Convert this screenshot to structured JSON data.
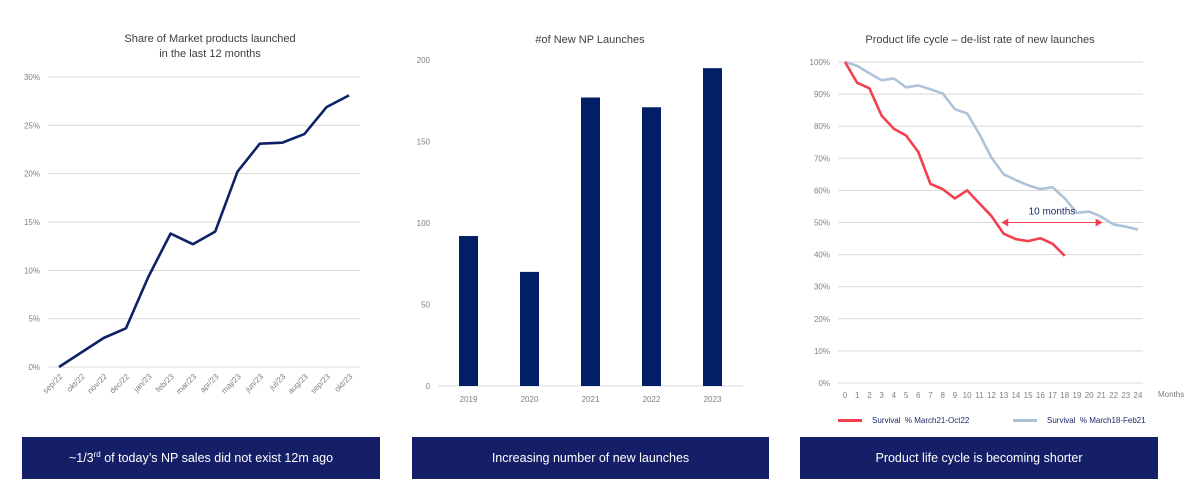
{
  "colors": {
    "navy": "#0d2266",
    "bar": "#001f66",
    "banner": "#141f68",
    "red": "#f2404f",
    "lightblue": "#afc3d8",
    "grid": "#d9d9d9",
    "tick": "#7f7f7f"
  },
  "panels": [
    {
      "title_line1": "Share of Market products launched",
      "title_line2": "in the last 12 months",
      "banner_prefix": "~1/3",
      "banner_sup": "rd",
      "banner_suffix": " of today’s NP sales did not exist 12m ago"
    },
    {
      "title": "#of New NP Launches",
      "banner": "Increasing number of new launches"
    },
    {
      "title": "Product life cycle – de-list rate of new launches",
      "banner": "Product life cycle is becoming shorter",
      "annotation": "10 months",
      "x_unit": "Months",
      "legend": [
        {
          "label": "Survival  % March21-Oct22",
          "color": "#f2404f"
        },
        {
          "label": "Survival  % March18-Feb21",
          "color": "#afc3d8"
        }
      ]
    }
  ],
  "chart_data": [
    {
      "type": "line",
      "title": "Share of Market products launched in the last 12 months",
      "xlabel": "",
      "ylabel": "",
      "categories": [
        "sep/22",
        "okt/22",
        "nov/22",
        "dec/22",
        "jan/23",
        "feb/23",
        "mar/23",
        "apr/23",
        "maj/23",
        "jun/23",
        "jul/23",
        "aug/23",
        "sep/23",
        "okt/23"
      ],
      "series": [
        {
          "name": "Share of Market",
          "values": [
            0.0,
            1.5,
            3.0,
            4.0,
            9.3,
            13.8,
            12.7,
            14.0,
            20.2,
            23.1,
            23.2,
            24.1,
            26.9,
            28.1
          ]
        }
      ],
      "y_ticks": [
        "0%",
        "5%",
        "10%",
        "15%",
        "20%",
        "25%",
        "30%"
      ],
      "ylim": [
        0,
        30
      ],
      "grid": true,
      "legend": null
    },
    {
      "type": "bar",
      "title": "#of New NP Launches",
      "xlabel": "",
      "ylabel": "",
      "categories": [
        "2019",
        "2020",
        "2021",
        "2022",
        "2023"
      ],
      "values": [
        92,
        70,
        177,
        171,
        195
      ],
      "y_ticks": [
        "0",
        "50",
        "100",
        "150",
        "200"
      ],
      "ylim": [
        0,
        200
      ],
      "grid": false,
      "legend": null
    },
    {
      "type": "line",
      "title": "Product life cycle – de-list rate of new launches",
      "xlabel": "Months",
      "ylabel": "",
      "x": [
        0,
        1,
        2,
        3,
        4,
        5,
        6,
        7,
        8,
        9,
        10,
        11,
        12,
        13,
        14,
        15,
        16,
        17,
        18,
        19,
        20,
        21,
        22,
        23,
        24
      ],
      "series": [
        {
          "name": "Survival  % March21-Oct22",
          "color": "#f2404f",
          "values": [
            100,
            93.5,
            91.8,
            83.3,
            79.2,
            77.1,
            72.0,
            62.0,
            60.4,
            57.5,
            60.0,
            56.0,
            52.0,
            46.5,
            44.8,
            44.2,
            45.1,
            43.4,
            39.6
          ]
        },
        {
          "name": "Survival  % March18-Feb21",
          "color": "#afc3d8",
          "values": [
            100,
            98.8,
            96.5,
            94.3,
            94.9,
            92.1,
            92.7,
            91.5,
            90.2,
            85.3,
            84.0,
            77.6,
            70.2,
            65.0,
            63.2,
            61.6,
            60.4,
            61.0,
            57.5,
            53.0,
            53.4,
            51.8,
            49.4,
            48.7,
            47.8
          ]
        }
      ],
      "y_ticks": [
        "0%",
        "10%",
        "20%",
        "30%",
        "40%",
        "50%",
        "60%",
        "70%",
        "80%",
        "90%",
        "100%"
      ],
      "ylim": [
        0,
        100
      ],
      "grid": true,
      "legend": "bottom",
      "annotations": [
        {
          "text": "10 months",
          "from_x": 12.8,
          "to_x": 21.1,
          "y": 50
        }
      ]
    }
  ]
}
